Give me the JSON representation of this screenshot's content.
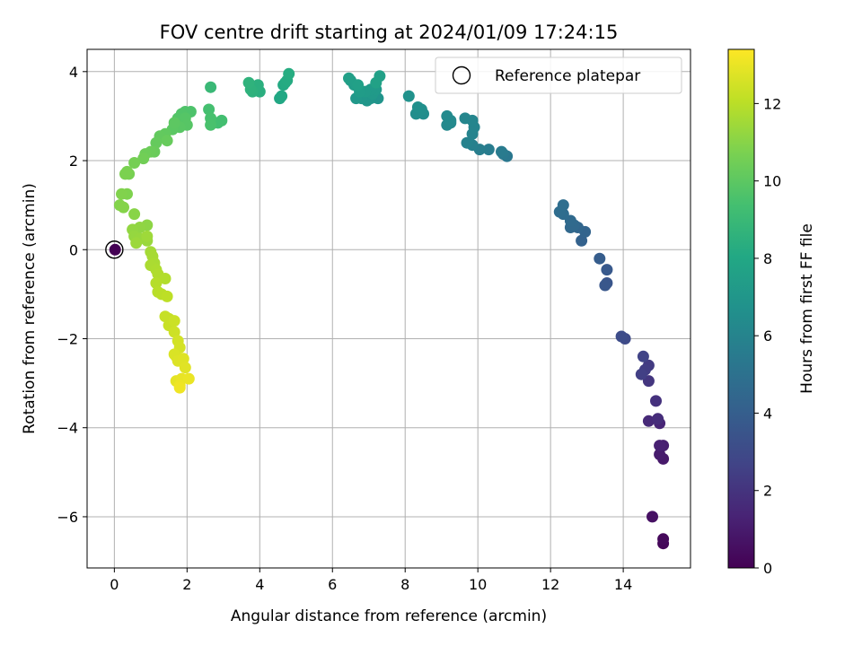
{
  "chart_data": {
    "type": "scatter",
    "title": "FOV centre drift starting at 2024/01/09 17:24:15",
    "xlabel": "Angular distance from reference (arcmin)",
    "ylabel": "Rotation from reference (arcmin)",
    "xlim": [
      -0.75,
      15.85
    ],
    "ylim": [
      -7.15,
      4.5
    ],
    "xticks": [
      0,
      2,
      4,
      6,
      8,
      10,
      12,
      14
    ],
    "xtick_labels": [
      "0",
      "2",
      "4",
      "6",
      "8",
      "10",
      "12",
      "14"
    ],
    "yticks": [
      4,
      2,
      0,
      -2,
      -4,
      -6
    ],
    "ytick_labels": [
      "4",
      "2",
      "0",
      "−2",
      "−4",
      "−6"
    ],
    "grid": true,
    "colormap": "viridis",
    "colorbar": {
      "label": "Hours from first FF file",
      "range": [
        0,
        13.4
      ],
      "ticks": [
        0,
        2,
        4,
        6,
        8,
        10,
        12
      ],
      "tick_labels": [
        "0",
        "2",
        "4",
        "6",
        "8",
        "10",
        "12"
      ]
    },
    "legend": {
      "entries": [
        "Reference platepar"
      ],
      "position": "upper right"
    },
    "reference_point": {
      "x": 0,
      "y": 0
    },
    "series": [
      {
        "points": [
          [
            15.1,
            -6.6,
            0.2
          ],
          [
            15.1,
            -6.5,
            0.3
          ],
          [
            14.8,
            -6.0,
            0.6
          ],
          [
            15.1,
            -4.7,
            0.9
          ],
          [
            15.0,
            -4.6,
            1.0
          ],
          [
            15.1,
            -4.4,
            1.1
          ],
          [
            15.0,
            -4.4,
            1.2
          ],
          [
            15.0,
            -3.9,
            1.4
          ],
          [
            14.7,
            -3.85,
            1.6
          ],
          [
            14.95,
            -3.8,
            1.7
          ],
          [
            14.9,
            -3.4,
            1.9
          ],
          [
            14.7,
            -2.95,
            2.1
          ],
          [
            14.7,
            -2.6,
            2.3
          ],
          [
            14.6,
            -2.7,
            2.4
          ],
          [
            14.5,
            -2.8,
            2.5
          ],
          [
            14.55,
            -2.4,
            2.7
          ],
          [
            14.05,
            -2.0,
            3.0
          ],
          [
            13.95,
            -1.95,
            3.1
          ],
          [
            13.55,
            -0.75,
            3.5
          ],
          [
            13.5,
            -0.8,
            3.6
          ],
          [
            13.55,
            -0.45,
            3.7
          ],
          [
            13.35,
            -0.2,
            3.9
          ],
          [
            12.85,
            0.2,
            4.2
          ],
          [
            12.95,
            0.4,
            4.3
          ],
          [
            12.75,
            0.5,
            4.4
          ],
          [
            12.55,
            0.5,
            4.5
          ],
          [
            12.65,
            0.55,
            4.55
          ],
          [
            12.55,
            0.65,
            4.6
          ],
          [
            12.35,
            0.8,
            4.7
          ],
          [
            12.25,
            0.85,
            4.75
          ],
          [
            12.35,
            1.0,
            4.8
          ],
          [
            10.8,
            2.1,
            5.3
          ],
          [
            10.7,
            2.15,
            5.4
          ],
          [
            10.65,
            2.2,
            5.5
          ],
          [
            10.3,
            2.25,
            5.6
          ],
          [
            10.05,
            2.25,
            5.7
          ],
          [
            9.85,
            2.35,
            5.8
          ],
          [
            9.7,
            2.4,
            5.9
          ],
          [
            9.85,
            2.6,
            5.95
          ],
          [
            9.9,
            2.75,
            6.0
          ],
          [
            9.85,
            2.9,
            6.05
          ],
          [
            9.65,
            2.95,
            6.1
          ],
          [
            9.25,
            2.85,
            6.2
          ],
          [
            9.15,
            2.8,
            6.25
          ],
          [
            9.25,
            2.9,
            6.3
          ],
          [
            9.15,
            3.0,
            6.35
          ],
          [
            8.5,
            3.05,
            6.5
          ],
          [
            8.3,
            3.05,
            6.55
          ],
          [
            8.45,
            3.15,
            6.6
          ],
          [
            8.35,
            3.2,
            6.65
          ],
          [
            8.1,
            3.45,
            6.75
          ],
          [
            7.25,
            3.4,
            6.9
          ],
          [
            7.05,
            3.4,
            6.95
          ],
          [
            6.95,
            3.35,
            7.0
          ],
          [
            6.8,
            3.4,
            7.05
          ],
          [
            6.65,
            3.4,
            7.1
          ],
          [
            7.1,
            3.5,
            7.15
          ],
          [
            7.2,
            3.6,
            7.2
          ],
          [
            7.05,
            3.6,
            7.25
          ],
          [
            6.9,
            3.55,
            7.3
          ],
          [
            6.75,
            3.55,
            7.35
          ],
          [
            6.6,
            3.7,
            7.4
          ],
          [
            6.5,
            3.8,
            7.45
          ],
          [
            6.45,
            3.85,
            7.5
          ],
          [
            6.7,
            3.7,
            7.55
          ],
          [
            7.3,
            3.9,
            7.6
          ],
          [
            7.2,
            3.75,
            7.65
          ],
          [
            4.55,
            3.4,
            8.0
          ],
          [
            4.6,
            3.45,
            8.05
          ],
          [
            4.65,
            3.7,
            8.1
          ],
          [
            4.7,
            3.75,
            8.15
          ],
          [
            4.75,
            3.8,
            8.2
          ],
          [
            4.8,
            3.95,
            8.25
          ],
          [
            4.0,
            3.55,
            8.4
          ],
          [
            3.95,
            3.7,
            8.45
          ],
          [
            3.8,
            3.55,
            8.5
          ],
          [
            3.75,
            3.6,
            8.55
          ],
          [
            3.7,
            3.75,
            8.6
          ],
          [
            2.65,
            3.65,
            9.0
          ],
          [
            2.85,
            2.85,
            9.3
          ],
          [
            2.95,
            2.9,
            9.35
          ],
          [
            2.6,
            3.15,
            9.4
          ],
          [
            2.65,
            2.95,
            9.45
          ],
          [
            2.65,
            2.8,
            9.5
          ],
          [
            2.1,
            3.1,
            9.6
          ],
          [
            1.95,
            3.1,
            9.65
          ],
          [
            1.85,
            3.05,
            9.7
          ],
          [
            1.75,
            2.95,
            9.75
          ],
          [
            1.95,
            2.95,
            9.8
          ],
          [
            2.0,
            2.8,
            9.85
          ],
          [
            1.8,
            2.75,
            9.9
          ],
          [
            1.6,
            2.7,
            9.95
          ],
          [
            1.65,
            2.85,
            10.0
          ],
          [
            1.4,
            2.6,
            10.1
          ],
          [
            1.25,
            2.55,
            10.15
          ],
          [
            1.15,
            2.4,
            10.2
          ],
          [
            1.45,
            2.45,
            10.25
          ],
          [
            1.1,
            2.2,
            10.3
          ],
          [
            1.0,
            2.2,
            10.35
          ],
          [
            0.85,
            2.15,
            10.4
          ],
          [
            0.8,
            2.05,
            10.5
          ],
          [
            0.55,
            1.95,
            10.6
          ],
          [
            0.4,
            1.7,
            10.65
          ],
          [
            0.35,
            1.75,
            10.7
          ],
          [
            0.3,
            1.7,
            10.75
          ],
          [
            0.35,
            1.25,
            10.8
          ],
          [
            0.2,
            1.25,
            10.85
          ],
          [
            0.15,
            1.0,
            10.9
          ],
          [
            0.25,
            0.95,
            10.95
          ],
          [
            0.55,
            0.8,
            11.0
          ],
          [
            0.9,
            0.55,
            11.1
          ],
          [
            0.7,
            0.5,
            11.15
          ],
          [
            0.5,
            0.45,
            11.2
          ],
          [
            0.55,
            0.3,
            11.25
          ],
          [
            0.7,
            0.25,
            11.3
          ],
          [
            0.9,
            0.2,
            11.35
          ],
          [
            0.6,
            0.15,
            11.4
          ],
          [
            0.9,
            0.3,
            11.45
          ],
          [
            1.0,
            -0.05,
            11.55
          ],
          [
            1.05,
            -0.15,
            11.6
          ],
          [
            1.1,
            -0.3,
            11.65
          ],
          [
            1.0,
            -0.35,
            11.7
          ],
          [
            1.15,
            -0.45,
            11.75
          ],
          [
            1.2,
            -0.55,
            11.8
          ],
          [
            1.4,
            -0.65,
            11.85
          ],
          [
            1.15,
            -0.75,
            11.9
          ],
          [
            1.2,
            -0.95,
            11.95
          ],
          [
            1.3,
            -1.0,
            12.0
          ],
          [
            1.45,
            -1.05,
            12.05
          ],
          [
            1.5,
            -1.55,
            12.2
          ],
          [
            1.4,
            -1.5,
            12.25
          ],
          [
            1.5,
            -1.7,
            12.3
          ],
          [
            1.65,
            -1.6,
            12.35
          ],
          [
            1.65,
            -1.85,
            12.4
          ],
          [
            1.75,
            -2.05,
            12.5
          ],
          [
            1.8,
            -2.2,
            12.55
          ],
          [
            1.7,
            -2.4,
            12.6
          ],
          [
            1.65,
            -2.35,
            12.65
          ],
          [
            1.75,
            -2.5,
            12.7
          ],
          [
            1.9,
            -2.45,
            12.75
          ],
          [
            1.95,
            -2.65,
            12.8
          ],
          [
            1.7,
            -2.95,
            12.9
          ],
          [
            1.85,
            -2.9,
            12.95
          ],
          [
            2.05,
            -2.9,
            13.0
          ],
          [
            1.8,
            -3.05,
            13.05
          ],
          [
            1.8,
            -3.1,
            13.1
          ],
          [
            0.02,
            0.0,
            0.0
          ]
        ]
      }
    ]
  }
}
